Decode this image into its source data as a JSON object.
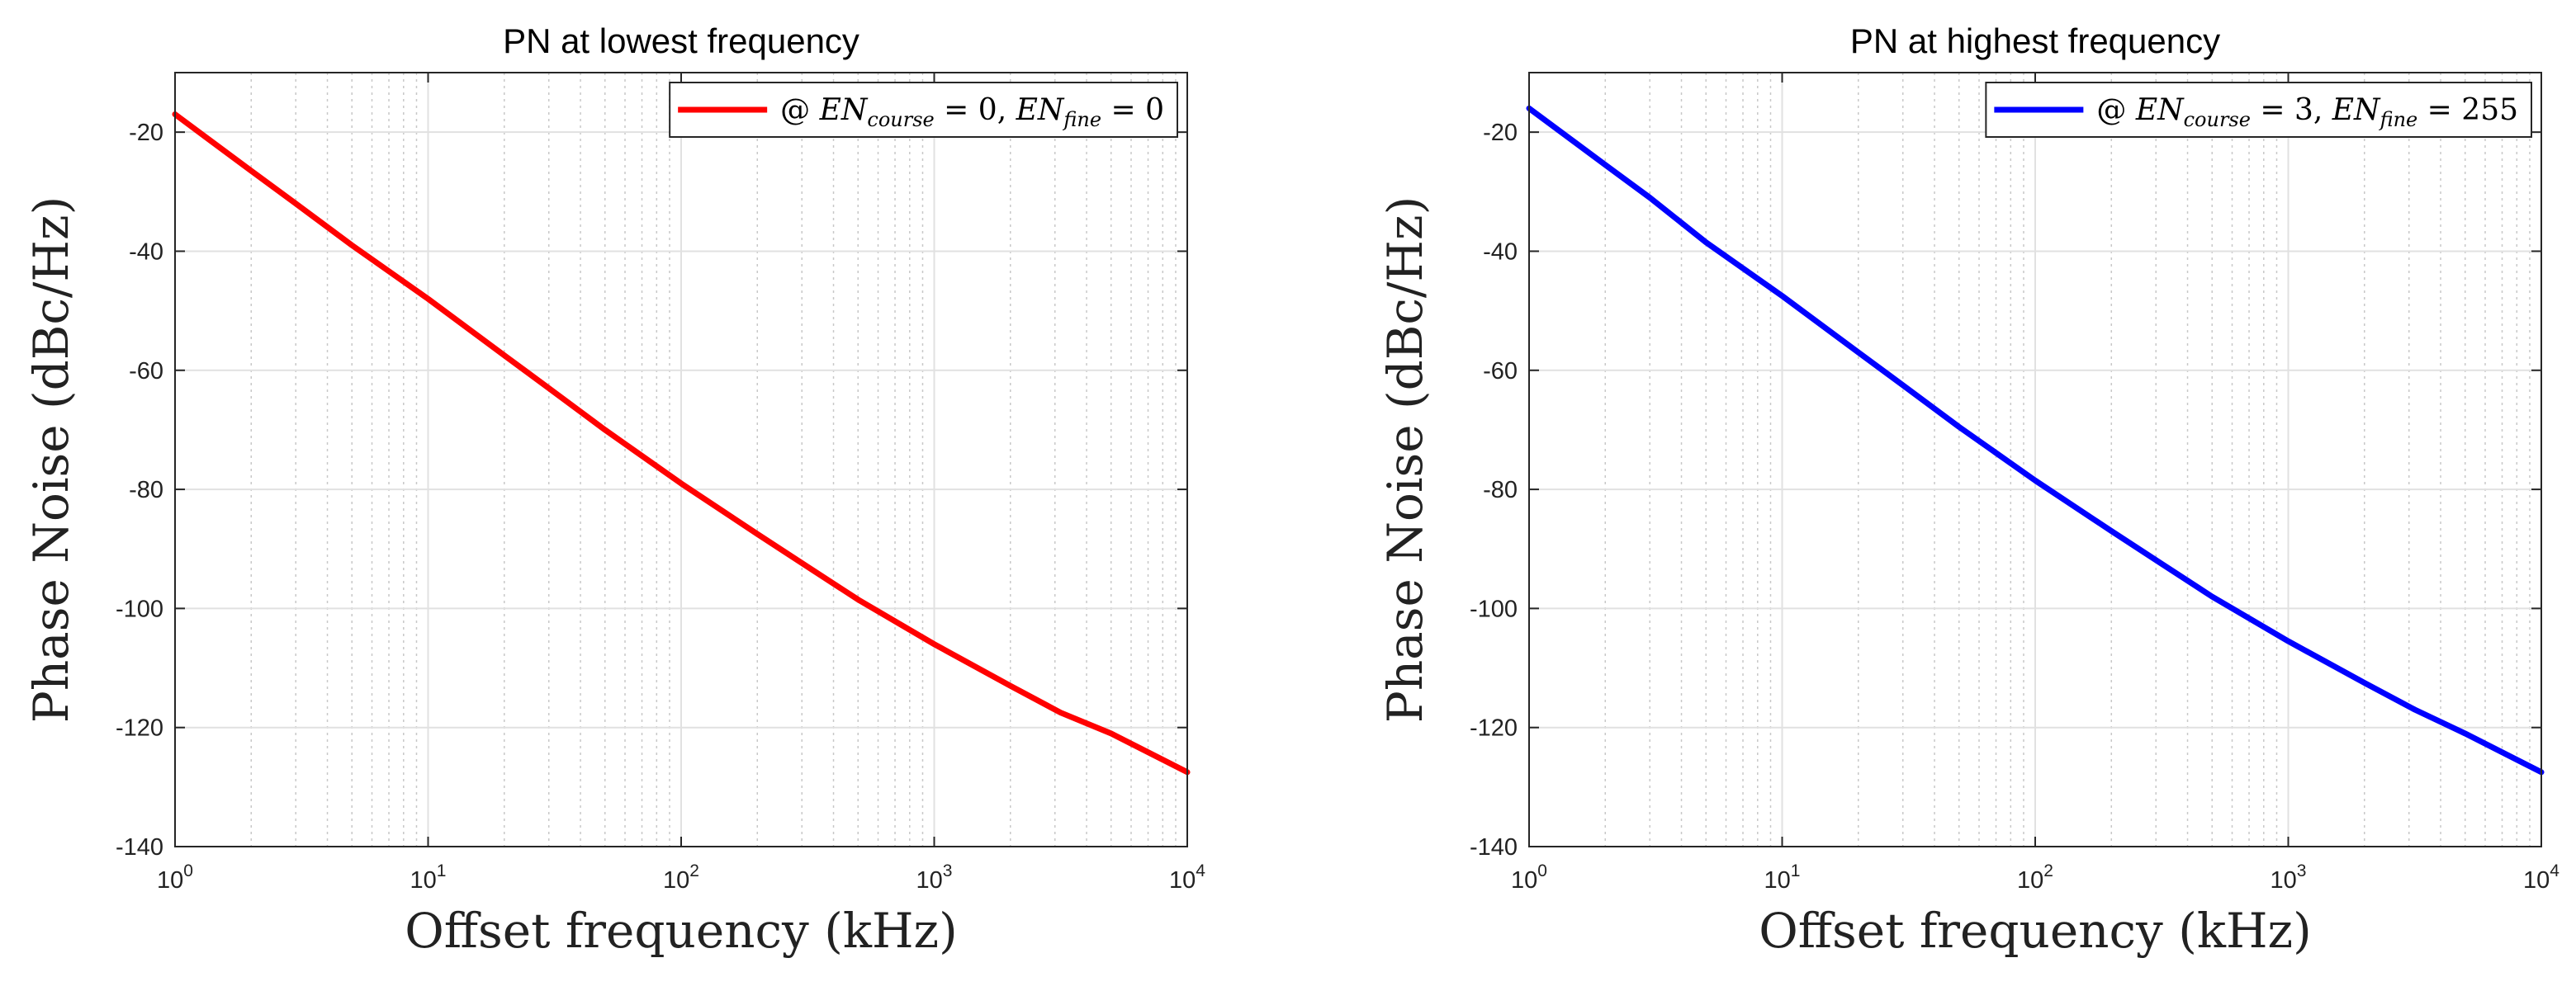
{
  "chart_data": [
    {
      "type": "line",
      "title": "PN at lowest frequency",
      "xlabel": "Offset frequency (kHz)",
      "ylabel": "Phase Noise (dBc/Hz)",
      "xscale": "log",
      "xlim": [
        1,
        10000
      ],
      "ylim": [
        -140,
        -10
      ],
      "grid": true,
      "x_ticks": [
        1,
        10,
        100,
        1000,
        10000
      ],
      "x_tick_labels": [
        {
          "base": "10",
          "exp": "0"
        },
        {
          "base": "10",
          "exp": "1"
        },
        {
          "base": "10",
          "exp": "2"
        },
        {
          "base": "10",
          "exp": "3"
        },
        {
          "base": "10",
          "exp": "4"
        }
      ],
      "y_ticks": [
        -140,
        -120,
        -100,
        -80,
        -60,
        -40,
        -20
      ],
      "y_tick_labels": [
        "-140",
        "-120",
        "-100",
        "-80",
        "-60",
        "-40",
        "-20"
      ],
      "legend_position": "top-right",
      "legend": {
        "prefix": "@ ",
        "v1_name": "EN",
        "v1_sub": "course",
        "v1_val": "= 0,",
        "v2_name": "EN",
        "v2_sub": "fine",
        "v2_val": "= 0"
      },
      "series": [
        {
          "name": "@ EN_course = 0, EN_fine = 0",
          "color": "#ff0000",
          "x": [
            1,
            2,
            3,
            5,
            10,
            20,
            30,
            50,
            100,
            200,
            316,
            500,
            1000,
            2000,
            3162,
            5000,
            10000
          ],
          "y": [
            -17,
            -26.5,
            -32,
            -39,
            -48,
            -57.5,
            -63,
            -70,
            -79,
            -87.5,
            -93,
            -98.5,
            -106,
            -113,
            -117.5,
            -121,
            -127.5
          ]
        }
      ]
    },
    {
      "type": "line",
      "title": "PN at highest frequency",
      "xlabel": "Offset frequency (kHz)",
      "ylabel": "Phase Noise (dBc/Hz)",
      "xscale": "log",
      "xlim": [
        1,
        10000
      ],
      "ylim": [
        -140,
        -10
      ],
      "grid": true,
      "x_ticks": [
        1,
        10,
        100,
        1000,
        10000
      ],
      "x_tick_labels": [
        {
          "base": "10",
          "exp": "0"
        },
        {
          "base": "10",
          "exp": "1"
        },
        {
          "base": "10",
          "exp": "2"
        },
        {
          "base": "10",
          "exp": "3"
        },
        {
          "base": "10",
          "exp": "4"
        }
      ],
      "y_ticks": [
        -140,
        -120,
        -100,
        -80,
        -60,
        -40,
        -20
      ],
      "y_tick_labels": [
        "-140",
        "-120",
        "-100",
        "-80",
        "-60",
        "-40",
        "-20"
      ],
      "legend_position": "top-right",
      "legend": {
        "prefix": "@ ",
        "v1_name": "EN",
        "v1_sub": "course",
        "v1_val": "= 3,",
        "v2_name": "EN",
        "v2_sub": "fine",
        "v2_val": "= 255"
      },
      "series": [
        {
          "name": "@ EN_course = 3, EN_fine = 255",
          "color": "#0000ff",
          "x": [
            1,
            2,
            3,
            5,
            10,
            20,
            30,
            50,
            100,
            200,
            316,
            500,
            1000,
            2000,
            3162,
            5000,
            10000
          ],
          "y": [
            -16,
            -25.5,
            -31,
            -38.5,
            -47.5,
            -57,
            -62.5,
            -69.5,
            -78.5,
            -87,
            -92.5,
            -98,
            -105.5,
            -112.5,
            -117,
            -121,
            -127.5
          ]
        }
      ]
    }
  ]
}
